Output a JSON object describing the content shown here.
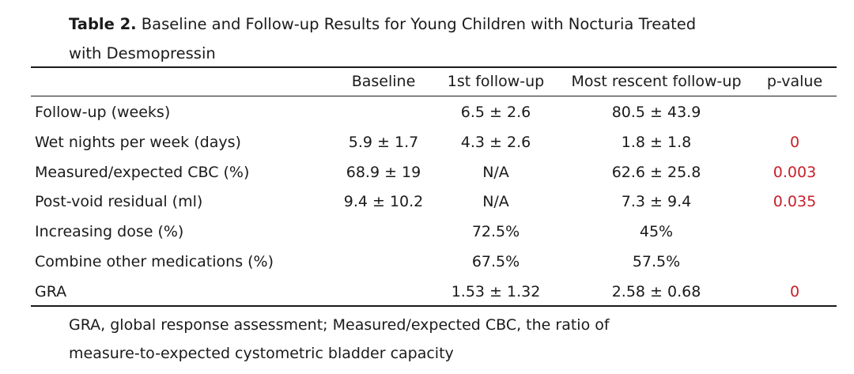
{
  "caption": {
    "label": "Table 2.",
    "text_line1": " Baseline and Follow-up Results for Young Children with Nocturia Treated",
    "text_line2": "with Desmopressin"
  },
  "headers": [
    "",
    "Baseline",
    "1st follow-up",
    "Most rescent follow-up",
    "p-value"
  ],
  "rows": [
    {
      "label": "Follow-up (weeks)",
      "baseline": "",
      "first": "6.5 ± 2.6",
      "recent": "80.5 ± 43.9",
      "p": ""
    },
    {
      "label": "Wet nights per week (days)",
      "baseline": "5.9 ± 1.7",
      "first": "4.3 ± 2.6",
      "recent": "1.8 ± 1.8",
      "p": "0"
    },
    {
      "label": "Measured/expected CBC (%)",
      "baseline": "68.9 ± 19",
      "first": "N/A",
      "recent": "62.6 ± 25.8",
      "p": "0.003"
    },
    {
      "label": "Post-void residual (ml)",
      "baseline": "9.4 ± 10.2",
      "first": "N/A",
      "recent": "7.3 ± 9.4",
      "p": "0.035"
    },
    {
      "label": "Increasing dose (%)",
      "baseline": "",
      "first": "72.5%",
      "recent": "45%",
      "p": ""
    },
    {
      "label": "Combine other medications (%)",
      "baseline": "",
      "first": "67.5%",
      "recent": "57.5%",
      "p": ""
    },
    {
      "label": "GRA",
      "baseline": "",
      "first": "1.53 ± 1.32",
      "recent": "2.58 ± 0.68",
      "p": "0"
    }
  ],
  "footnote": {
    "line1": "GRA, global response assessment; Measured/expected CBC, the ratio of",
    "line2": "measure-to-expected cystometric bladder capacity"
  },
  "colors": {
    "text": "#1a1a1a",
    "p_value": "#c8202a"
  }
}
